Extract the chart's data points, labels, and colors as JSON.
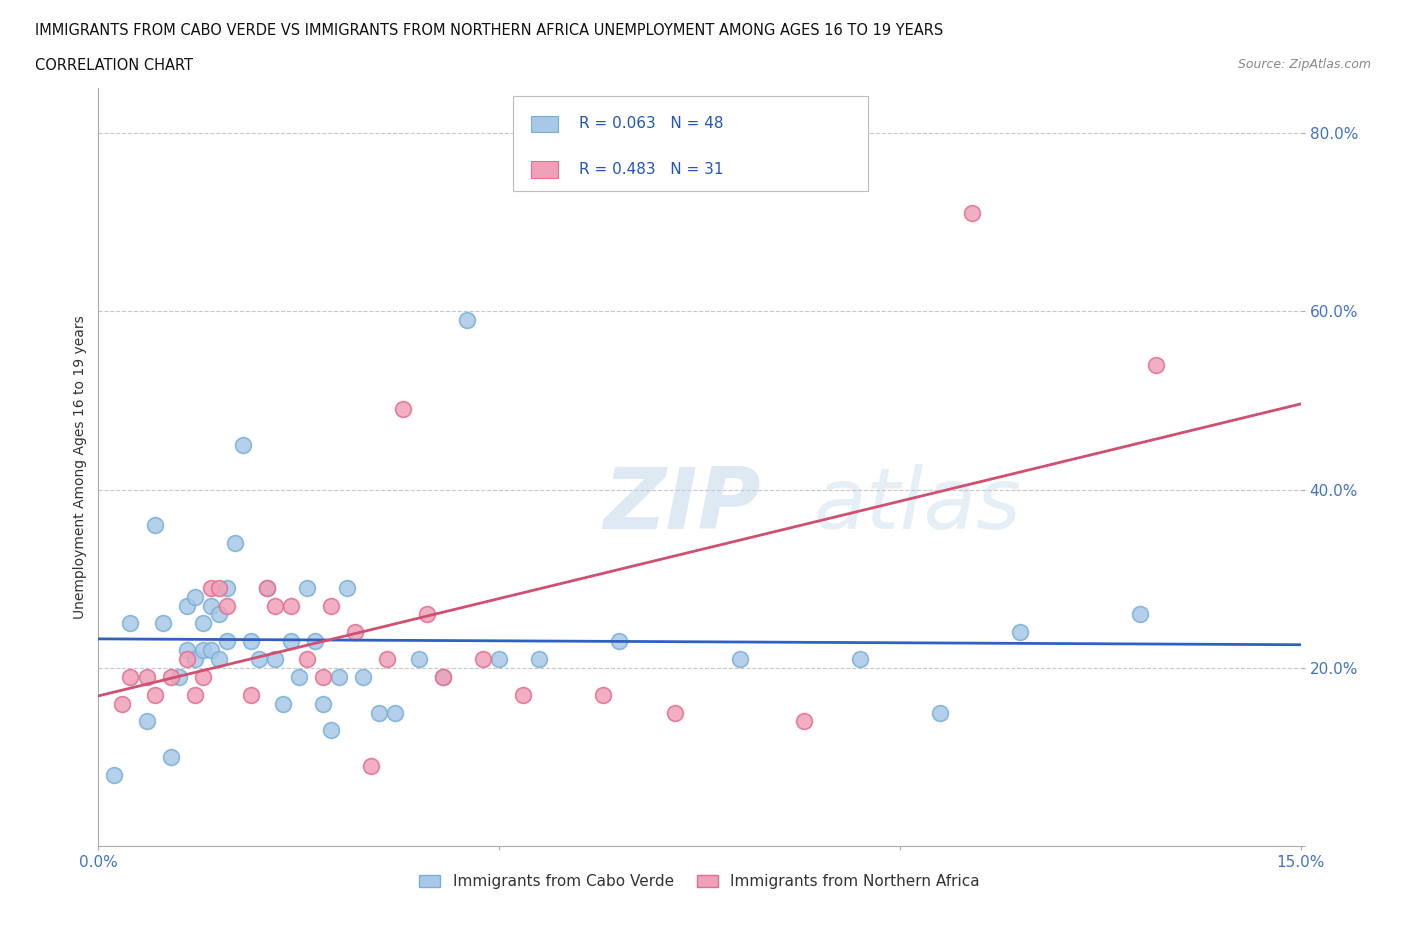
{
  "title_line1": "IMMIGRANTS FROM CABO VERDE VS IMMIGRANTS FROM NORTHERN AFRICA UNEMPLOYMENT AMONG AGES 16 TO 19 YEARS",
  "title_line2": "CORRELATION CHART",
  "source_text": "Source: ZipAtlas.com",
  "ylabel": "Unemployment Among Ages 16 to 19 years",
  "xmin": 0.0,
  "xmax": 0.15,
  "ymin": 0.0,
  "ymax": 0.85,
  "yticks": [
    0.0,
    0.2,
    0.4,
    0.6,
    0.8
  ],
  "grid_color": "#c8c8c8",
  "background_color": "#ffffff",
  "cabo_verde_fill": "#a8c8e8",
  "cabo_verde_edge": "#7aafd4",
  "northern_africa_fill": "#f0a0b8",
  "northern_africa_edge": "#e07090",
  "cabo_verde_line_color": "#3060c0",
  "northern_africa_line_color": "#d05070",
  "cabo_verde_R": 0.063,
  "cabo_verde_N": 48,
  "northern_africa_R": 0.483,
  "northern_africa_N": 31,
  "legend_label_1": "Immigrants from Cabo Verde",
  "legend_label_2": "Immigrants from Northern Africa",
  "watermark": "ZIPatlas",
  "cabo_verde_x": [
    0.002,
    0.004,
    0.006,
    0.007,
    0.008,
    0.009,
    0.01,
    0.011,
    0.011,
    0.012,
    0.012,
    0.013,
    0.013,
    0.014,
    0.014,
    0.015,
    0.015,
    0.016,
    0.016,
    0.017,
    0.018,
    0.019,
    0.02,
    0.021,
    0.022,
    0.023,
    0.024,
    0.025,
    0.026,
    0.027,
    0.028,
    0.029,
    0.03,
    0.031,
    0.033,
    0.035,
    0.037,
    0.04,
    0.043,
    0.046,
    0.05,
    0.055,
    0.065,
    0.08,
    0.095,
    0.105,
    0.115,
    0.13
  ],
  "cabo_verde_y": [
    0.08,
    0.25,
    0.14,
    0.36,
    0.25,
    0.1,
    0.19,
    0.22,
    0.27,
    0.21,
    0.28,
    0.22,
    0.25,
    0.22,
    0.27,
    0.21,
    0.26,
    0.23,
    0.29,
    0.34,
    0.45,
    0.23,
    0.21,
    0.29,
    0.21,
    0.16,
    0.23,
    0.19,
    0.29,
    0.23,
    0.16,
    0.13,
    0.19,
    0.29,
    0.19,
    0.15,
    0.15,
    0.21,
    0.19,
    0.59,
    0.21,
    0.21,
    0.23,
    0.21,
    0.21,
    0.15,
    0.24,
    0.26
  ],
  "northern_africa_x": [
    0.003,
    0.004,
    0.006,
    0.007,
    0.009,
    0.011,
    0.012,
    0.013,
    0.014,
    0.015,
    0.016,
    0.019,
    0.021,
    0.022,
    0.024,
    0.026,
    0.028,
    0.029,
    0.032,
    0.034,
    0.036,
    0.038,
    0.041,
    0.043,
    0.048,
    0.053,
    0.063,
    0.072,
    0.088,
    0.109,
    0.132
  ],
  "northern_africa_y": [
    0.16,
    0.19,
    0.19,
    0.17,
    0.19,
    0.21,
    0.17,
    0.19,
    0.29,
    0.29,
    0.27,
    0.17,
    0.29,
    0.27,
    0.27,
    0.21,
    0.19,
    0.27,
    0.24,
    0.09,
    0.21,
    0.49,
    0.26,
    0.19,
    0.21,
    0.17,
    0.17,
    0.15,
    0.14,
    0.71,
    0.54
  ]
}
